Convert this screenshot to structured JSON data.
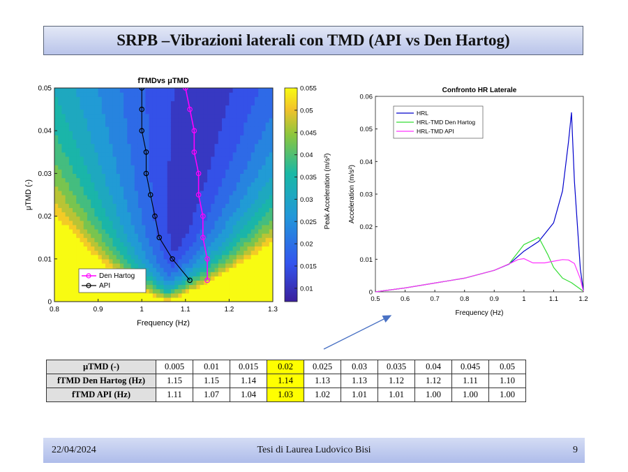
{
  "slide": {
    "title": "SRPB –Vibrazioni laterali con TMD (API vs Den Hartog)"
  },
  "footer": {
    "date": "22/04/2024",
    "title": "Tesi di Laurea Ludovico Bisi",
    "page": "9"
  },
  "table": {
    "rows": [
      {
        "label": "µTMD (-)",
        "values": [
          "0.005",
          "0.01",
          "0.015",
          "0.02",
          "0.025",
          "0.03",
          "0.035",
          "0.04",
          "0.045",
          "0.05"
        ]
      },
      {
        "label": "fTMD Den Hartog (Hz)",
        "values": [
          "1.15",
          "1.15",
          "1.14",
          "1.14",
          "1.13",
          "1.13",
          "1.12",
          "1.12",
          "1.11",
          "1.10"
        ]
      },
      {
        "label": "fTMD API (Hz)",
        "values": [
          "1.11",
          "1.07",
          "1.04",
          "1.03",
          "1.02",
          "1.01",
          "1.01",
          "1.00",
          "1.00",
          "1.00"
        ]
      }
    ],
    "highlight_index": 3,
    "highlight_color": "#ffff00"
  },
  "chart_data": [
    {
      "type": "contour",
      "title": "fTMDvs μTMD",
      "xlabel": "Frequency (Hz)",
      "ylabel": "μTMD (-)",
      "xlim": [
        0.8,
        1.3
      ],
      "ylim": [
        0,
        0.05
      ],
      "xticks": [
        0.8,
        0.9,
        1,
        1.1,
        1.2,
        1.3
      ],
      "xtick_labels": [
        "0.8",
        "0.9",
        "1",
        "1.1",
        "1.2",
        "1.3"
      ],
      "yticks": [
        0,
        0.01,
        0.02,
        0.03,
        0.04,
        0.05
      ],
      "ytick_labels": [
        "0",
        "0.01",
        "0.02",
        "0.03",
        "0.04",
        "0.05"
      ],
      "colorbar": {
        "label": "Peak Acceleration (m/s²)",
        "range": [
          0.007,
          0.055
        ],
        "ticks": [
          0.01,
          0.015,
          0.02,
          0.025,
          0.03,
          0.035,
          0.04,
          0.045,
          0.05,
          0.055
        ],
        "tick_labels": [
          "0.01",
          "0.015",
          "0.02",
          "0.025",
          "0.03",
          "0.035",
          "0.04",
          "0.045",
          "0.05",
          "0.055"
        ]
      },
      "legend": {
        "position": "bottom-left",
        "entries": [
          "Den Hartog",
          "API"
        ]
      },
      "series": [
        {
          "name": "Den Hartog",
          "color": "#ff00ff",
          "x": [
            1.15,
            1.15,
            1.14,
            1.14,
            1.13,
            1.13,
            1.12,
            1.12,
            1.11,
            1.1
          ],
          "y": [
            0.005,
            0.01,
            0.015,
            0.02,
            0.025,
            0.03,
            0.035,
            0.04,
            0.045,
            0.05
          ]
        },
        {
          "name": "API",
          "color": "#000000",
          "x": [
            1.11,
            1.07,
            1.04,
            1.03,
            1.02,
            1.01,
            1.01,
            1.0,
            1.0,
            1.0
          ],
          "y": [
            0.005,
            0.01,
            0.015,
            0.02,
            0.025,
            0.03,
            0.035,
            0.04,
            0.045,
            0.05
          ]
        }
      ]
    },
    {
      "type": "line",
      "title": "Confronto HR Laterale",
      "xlabel": "Frequency (Hz)",
      "ylabel": "Acceleration (m/s²)",
      "xlim": [
        0.5,
        1.2
      ],
      "ylim": [
        0,
        0.06
      ],
      "xticks": [
        0.5,
        0.6,
        0.7,
        0.8,
        0.9,
        1,
        1.1,
        1.2
      ],
      "xtick_labels": [
        "0.5",
        "0.6",
        "0.7",
        "0.8",
        "0.9",
        "1",
        "1.1",
        "1.2"
      ],
      "yticks": [
        0,
        0.01,
        0.02,
        0.03,
        0.04,
        0.05,
        0.06
      ],
      "ytick_labels": [
        "0",
        "0.01",
        "0.02",
        "0.03",
        "0.04",
        "0.05",
        "0.06"
      ],
      "legend": {
        "position": "top-left",
        "entries": [
          "HRL",
          "HRL-TMD Den Hartog",
          "HRL-TMD API"
        ]
      },
      "series": [
        {
          "name": "HRL",
          "color": "#0000cc",
          "x": [
            0.5,
            0.6,
            0.7,
            0.8,
            0.9,
            0.95,
            1.0,
            1.05,
            1.1,
            1.13,
            1.15,
            1.16,
            1.17,
            1.19,
            1.2
          ],
          "y": [
            0,
            0.0012,
            0.0027,
            0.0042,
            0.0066,
            0.0085,
            0.0125,
            0.0155,
            0.0212,
            0.031,
            0.046,
            0.055,
            0.034,
            0.007,
            0.0005
          ]
        },
        {
          "name": "HRL-TMD Den Hartog",
          "color": "#33dd33",
          "x": [
            0.5,
            0.6,
            0.7,
            0.8,
            0.9,
            0.95,
            1.0,
            1.03,
            1.05,
            1.08,
            1.1,
            1.13,
            1.16,
            1.18,
            1.2
          ],
          "y": [
            0,
            0.0012,
            0.0027,
            0.0042,
            0.0066,
            0.0086,
            0.0145,
            0.0158,
            0.0167,
            0.0115,
            0.0075,
            0.0042,
            0.0028,
            0.0015,
            0.0002
          ]
        },
        {
          "name": "HRL-TMD API",
          "color": "#ff33ff",
          "x": [
            0.5,
            0.6,
            0.7,
            0.8,
            0.9,
            0.95,
            0.98,
            1.0,
            1.03,
            1.07,
            1.1,
            1.13,
            1.15,
            1.17,
            1.19,
            1.2
          ],
          "y": [
            0,
            0.0012,
            0.0027,
            0.0042,
            0.0066,
            0.0086,
            0.0099,
            0.0102,
            0.0089,
            0.0089,
            0.0094,
            0.0099,
            0.0098,
            0.0087,
            0.004,
            0.0002
          ]
        }
      ]
    }
  ]
}
